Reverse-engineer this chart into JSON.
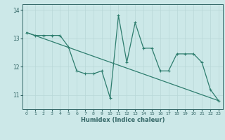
{
  "title": "",
  "xlabel": "Humidex (Indice chaleur)",
  "ylabel": "",
  "bg_color": "#cce8e8",
  "line_color": "#2e7d6e",
  "grid_color": "#b8d8d8",
  "axis_color": "#336666",
  "xlim": [
    -0.5,
    23.5
  ],
  "ylim": [
    10.5,
    14.2
  ],
  "yticks": [
    11,
    12,
    13,
    14
  ],
  "xticks": [
    0,
    1,
    2,
    3,
    4,
    5,
    6,
    7,
    8,
    9,
    10,
    11,
    12,
    13,
    14,
    15,
    16,
    17,
    18,
    19,
    20,
    21,
    22,
    23
  ],
  "series1_x": [
    0,
    1,
    2,
    3,
    4,
    5,
    6,
    7,
    8,
    9,
    10,
    11,
    12,
    13,
    14,
    15,
    16,
    17,
    18,
    19,
    20,
    21,
    22,
    23
  ],
  "series1_y": [
    13.2,
    13.1,
    13.1,
    13.1,
    13.1,
    12.7,
    11.85,
    11.75,
    11.75,
    11.85,
    10.9,
    13.8,
    12.15,
    13.55,
    12.65,
    12.65,
    11.85,
    11.85,
    12.45,
    12.45,
    12.45,
    12.15,
    11.2,
    10.8
  ],
  "series2_x": [
    0,
    23
  ],
  "series2_y": [
    13.2,
    10.8
  ],
  "marker_size": 2.5,
  "line_width": 0.9
}
